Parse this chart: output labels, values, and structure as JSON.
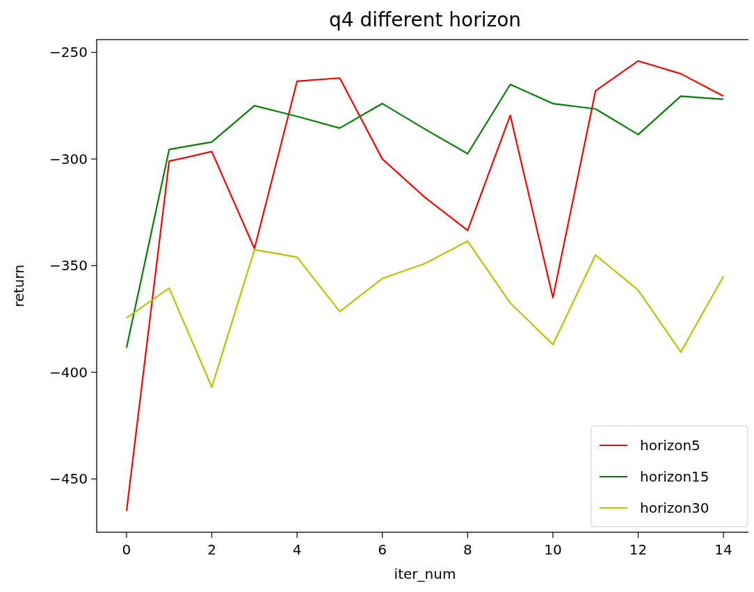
{
  "chart_data": {
    "type": "line",
    "title": "q4 different horizon",
    "xlabel": "iter_num",
    "ylabel": "return",
    "x": [
      0,
      1,
      2,
      3,
      4,
      5,
      6,
      7,
      8,
      9,
      10,
      11,
      12,
      13,
      14
    ],
    "series": [
      {
        "name": "horizon5",
        "color": "#ff0000",
        "values": [
          -465,
          -301,
          -296.5,
          -342,
          -263.5,
          -262,
          -300,
          -318,
          -333.5,
          -279.5,
          -365,
          -268,
          -254,
          -260,
          -270.5
        ]
      },
      {
        "name": "horizon15",
        "color": "#008000",
        "values": [
          -388.5,
          -295.5,
          -292,
          -275,
          -280,
          -285.5,
          -274,
          -286,
          -297.5,
          -265,
          -274,
          -276.5,
          -288.5,
          -270.5,
          -272
        ]
      },
      {
        "name": "horizon30",
        "color": "#bfbf00",
        "values": [
          -374.5,
          -360.5,
          -407,
          -342.5,
          -346,
          -371.5,
          -356,
          -349,
          -338.5,
          -367.5,
          -387,
          -345,
          -361.5,
          -390.5,
          -355
        ]
      }
    ],
    "xlim": [
      -0.7,
      14.7
    ],
    "ylim": [
      -475,
      -244
    ],
    "xticks": [
      0,
      2,
      4,
      6,
      8,
      10,
      12,
      14
    ],
    "yticks": [
      -450,
      -400,
      -350,
      -300,
      -250
    ],
    "grid": false,
    "legend": "bottom right",
    "marker": "none",
    "line_style": "solid"
  }
}
